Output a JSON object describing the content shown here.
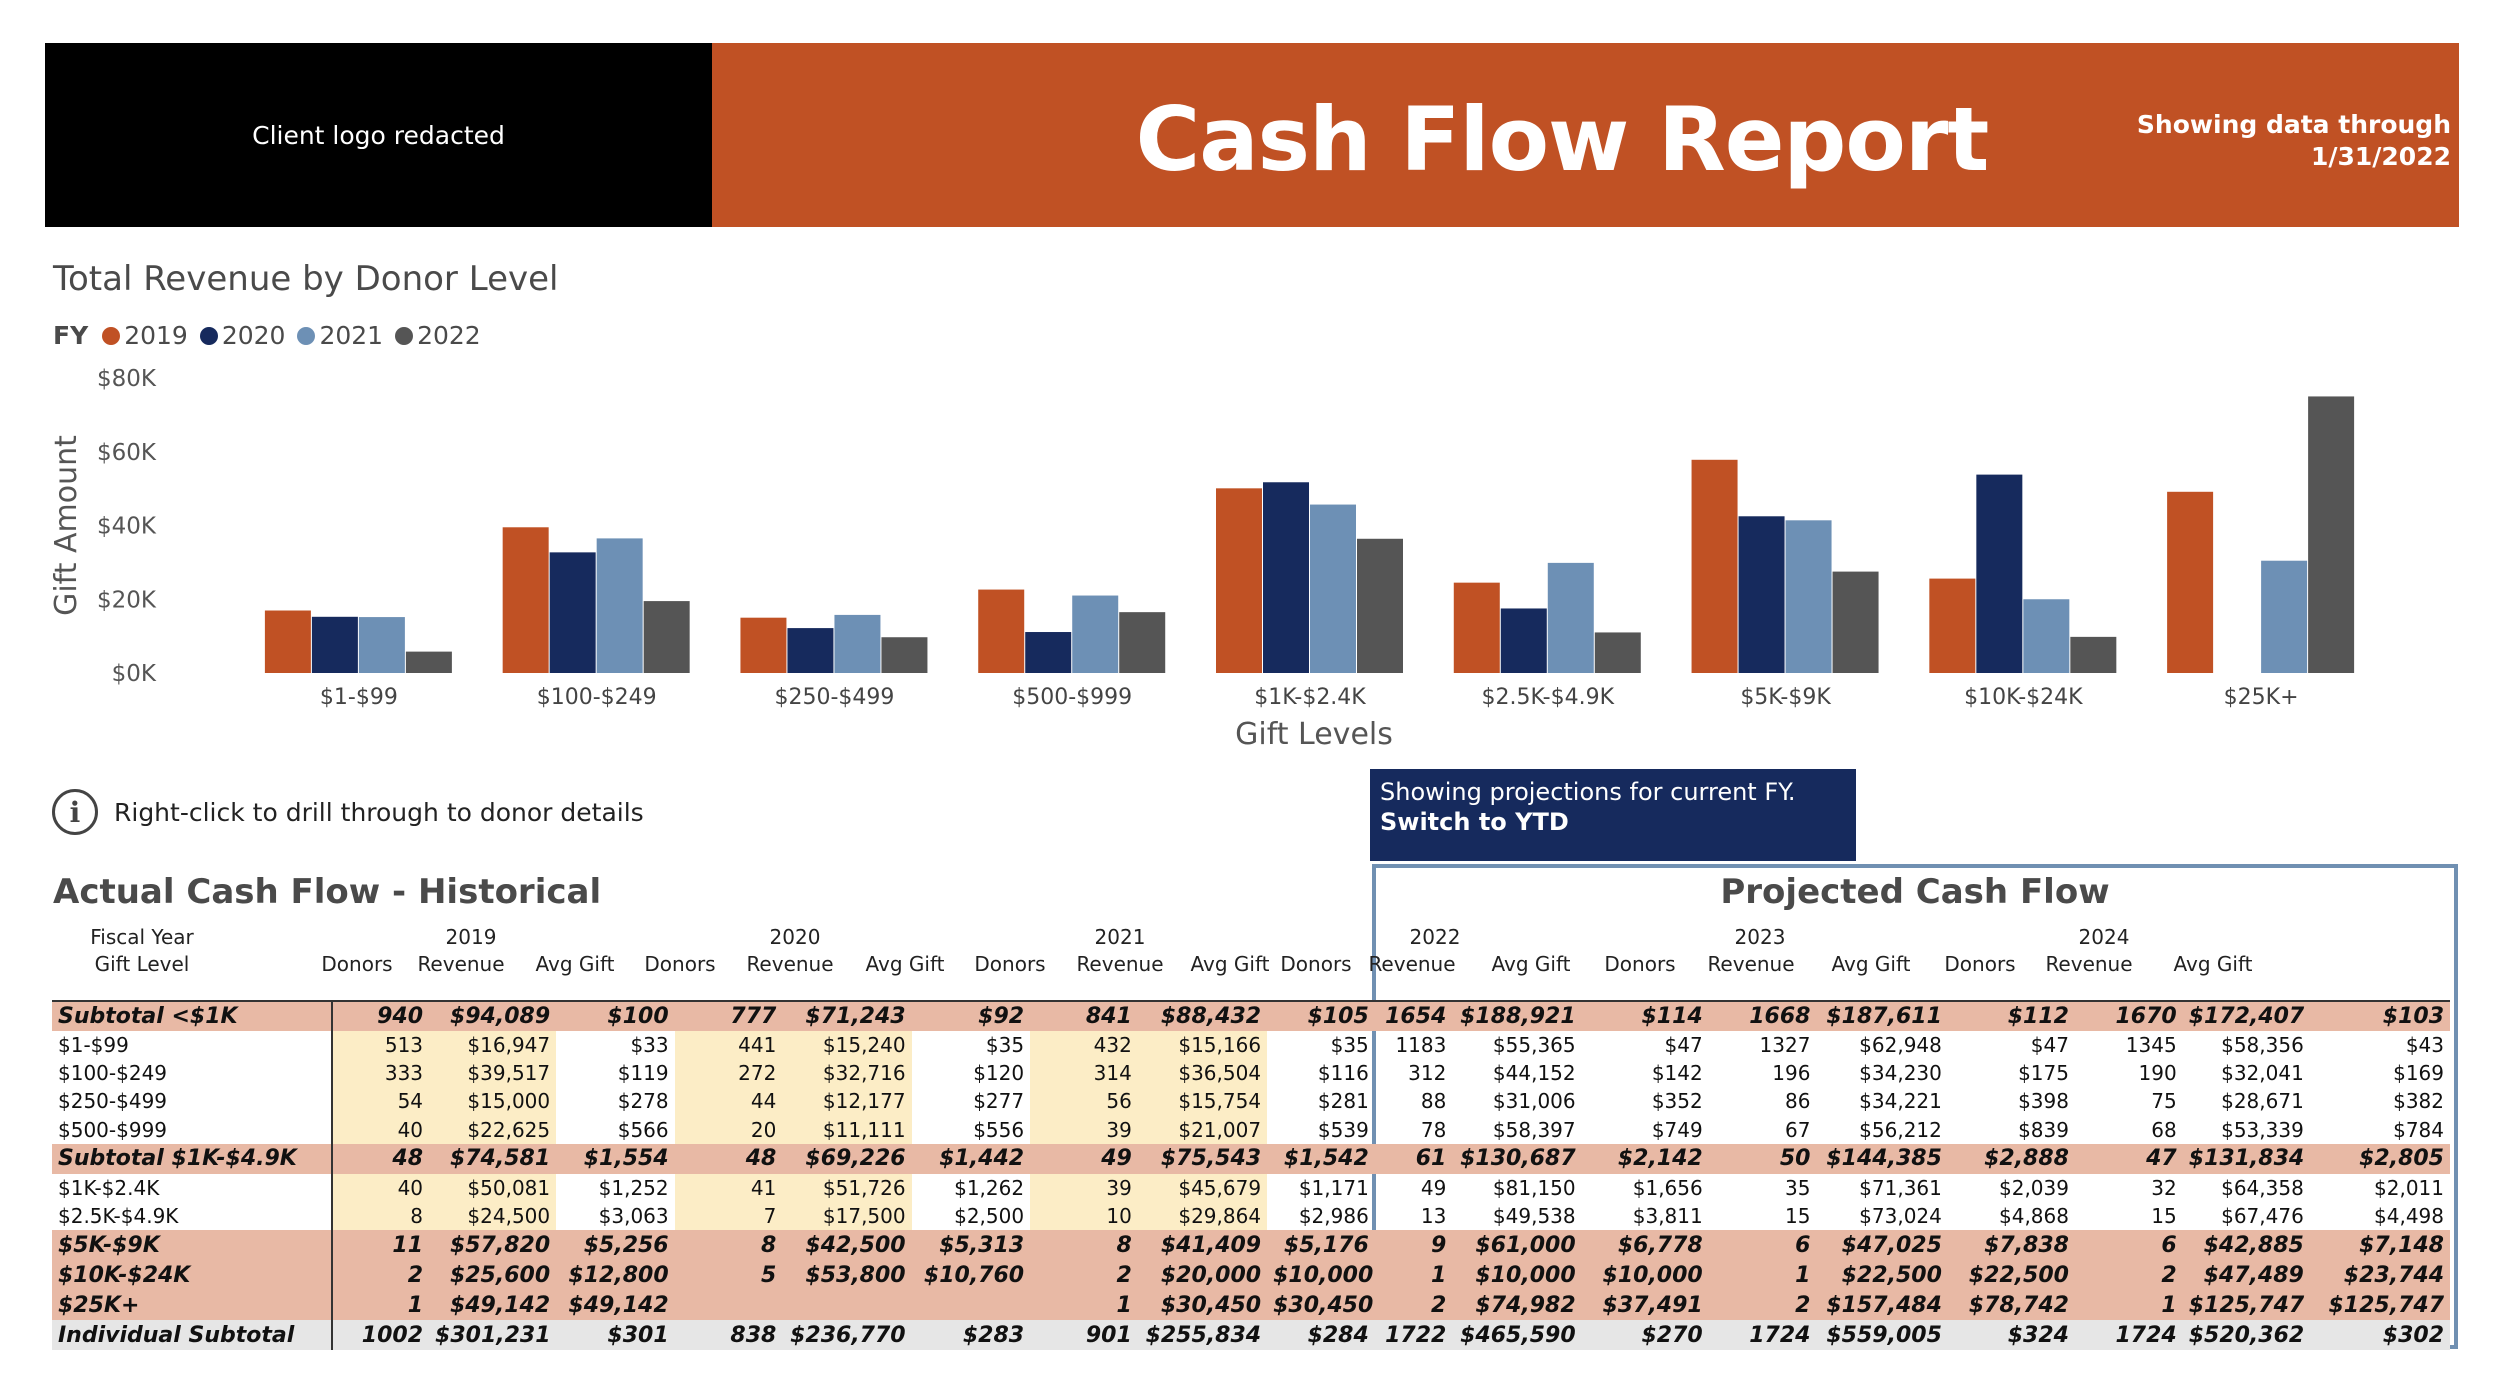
{
  "header": {
    "logo_text": "Client logo redacted",
    "title": "Cash Flow Report",
    "date_line1": "Showing data through",
    "date_line2": "1/31/2022"
  },
  "chart": {
    "title": "Total Revenue by Donor Level",
    "legend_label": "FY"
  },
  "chart_data": {
    "type": "bar",
    "title": "Total Revenue by Donor Level",
    "xlabel": "Gift Levels",
    "ylabel": "Gift Amount",
    "ylim": [
      0,
      80000
    ],
    "yticks": [
      "$0K",
      "$20K",
      "$40K",
      "$60K",
      "$80K"
    ],
    "categories": [
      "$1-$99",
      "$100-$249",
      "$250-$499",
      "$500-$999",
      "$1K-$2.4K",
      "$2.5K-$4.9K",
      "$5K-$9K",
      "$10K-$24K",
      "$25K+"
    ],
    "series": [
      {
        "name": "2019",
        "color": "#c05124",
        "values": [
          16947,
          39517,
          15000,
          22625,
          50081,
          24500,
          57820,
          25600,
          49142
        ]
      },
      {
        "name": "2020",
        "color": "#162a5d",
        "values": [
          15240,
          32716,
          12177,
          11111,
          51726,
          17500,
          42500,
          53800,
          0
        ]
      },
      {
        "name": "2021",
        "color": "#6d90b5",
        "values": [
          15166,
          36504,
          15754,
          21007,
          45679,
          29864,
          41409,
          20000,
          30450
        ]
      },
      {
        "name": "2022",
        "color": "#555555",
        "values": [
          5800,
          19500,
          9700,
          16500,
          36400,
          11000,
          27500,
          9800,
          75000
        ]
      }
    ],
    "legend_position": "top-left",
    "grid": false
  },
  "info": {
    "text": "Right-click to drill through to donor details"
  },
  "projection_note": {
    "line1": "Showing projections for current FY.",
    "line2": "Switch to YTD"
  },
  "tables": {
    "historical_title": "Actual Cash Flow - Historical",
    "projected_title": "Projected Cash Flow",
    "fiscal_year_label": "Fiscal Year",
    "gift_level_label": "Gift Level",
    "years": [
      "2019",
      "2020",
      "2021",
      "2022",
      "2023",
      "2024"
    ],
    "col_labels": [
      "Donors",
      "Revenue",
      "Avg Gift"
    ],
    "rows": [
      {
        "type": "sub",
        "label": "Subtotal <$1K",
        "values": [
          "940",
          "$94,089",
          "$100",
          "777",
          "$71,243",
          "$92",
          "841",
          "$88,432",
          "$105",
          "1654",
          "$188,921",
          "$114",
          "1668",
          "$187,611",
          "$112",
          "1670",
          "$172,407",
          "$103"
        ]
      },
      {
        "type": "det",
        "label": "$1-$99",
        "values": [
          "513",
          "$16,947",
          "$33",
          "441",
          "$15,240",
          "$35",
          "432",
          "$15,166",
          "$35",
          "1183",
          "$55,365",
          "$47",
          "1327",
          "$62,948",
          "$47",
          "1345",
          "$58,356",
          "$43"
        ]
      },
      {
        "type": "det",
        "label": "$100-$249",
        "values": [
          "333",
          "$39,517",
          "$119",
          "272",
          "$32,716",
          "$120",
          "314",
          "$36,504",
          "$116",
          "312",
          "$44,152",
          "$142",
          "196",
          "$34,230",
          "$175",
          "190",
          "$32,041",
          "$169"
        ]
      },
      {
        "type": "det",
        "label": "$250-$499",
        "values": [
          "54",
          "$15,000",
          "$278",
          "44",
          "$12,177",
          "$277",
          "56",
          "$15,754",
          "$281",
          "88",
          "$31,006",
          "$352",
          "86",
          "$34,221",
          "$398",
          "75",
          "$28,671",
          "$382"
        ]
      },
      {
        "type": "det",
        "label": "$500-$999",
        "values": [
          "40",
          "$22,625",
          "$566",
          "20",
          "$11,111",
          "$556",
          "39",
          "$21,007",
          "$539",
          "78",
          "$58,397",
          "$749",
          "67",
          "$56,212",
          "$839",
          "68",
          "$53,339",
          "$784"
        ]
      },
      {
        "type": "sub",
        "label": "Subtotal $1K-$4.9K",
        "values": [
          "48",
          "$74,581",
          "$1,554",
          "48",
          "$69,226",
          "$1,442",
          "49",
          "$75,543",
          "$1,542",
          "61",
          "$130,687",
          "$2,142",
          "50",
          "$144,385",
          "$2,888",
          "47",
          "$131,834",
          "$2,805"
        ]
      },
      {
        "type": "det",
        "label": "$1K-$2.4K",
        "values": [
          "40",
          "$50,081",
          "$1,252",
          "41",
          "$51,726",
          "$1,262",
          "39",
          "$45,679",
          "$1,171",
          "49",
          "$81,150",
          "$1,656",
          "35",
          "$71,361",
          "$2,039",
          "32",
          "$64,358",
          "$2,011"
        ]
      },
      {
        "type": "det",
        "label": "$2.5K-$4.9K",
        "values": [
          "8",
          "$24,500",
          "$3,063",
          "7",
          "$17,500",
          "$2,500",
          "10",
          "$29,864",
          "$2,986",
          "13",
          "$49,538",
          "$3,811",
          "15",
          "$73,024",
          "$4,868",
          "15",
          "$67,476",
          "$4,498"
        ]
      },
      {
        "type": "sub",
        "label": "$5K-$9K",
        "values": [
          "11",
          "$57,820",
          "$5,256",
          "8",
          "$42,500",
          "$5,313",
          "8",
          "$41,409",
          "$5,176",
          "9",
          "$61,000",
          "$6,778",
          "6",
          "$47,025",
          "$7,838",
          "6",
          "$42,885",
          "$7,148"
        ]
      },
      {
        "type": "sub",
        "label": "$10K-$24K",
        "values": [
          "2",
          "$25,600",
          "$12,800",
          "5",
          "$53,800",
          "$10,760",
          "2",
          "$20,000",
          "$10,000",
          "1",
          "$10,000",
          "$10,000",
          "1",
          "$22,500",
          "$22,500",
          "2",
          "$47,489",
          "$23,744"
        ]
      },
      {
        "type": "sub",
        "label": "$25K+",
        "values": [
          "1",
          "$49,142",
          "$49,142",
          "",
          "",
          "",
          "1",
          "$30,450",
          "$30,450",
          "2",
          "$74,982",
          "$37,491",
          "2",
          "$157,484",
          "$78,742",
          "1",
          "$125,747",
          "$125,747"
        ]
      },
      {
        "type": "tot",
        "label": "Individual Subtotal",
        "values": [
          "1002",
          "$301,231",
          "$301",
          "838",
          "$236,770",
          "$283",
          "901",
          "$255,834",
          "$284",
          "1722",
          "$465,590",
          "$270",
          "1724",
          "$559,005",
          "$324",
          "1724",
          "$520,362",
          "$302"
        ]
      }
    ]
  }
}
